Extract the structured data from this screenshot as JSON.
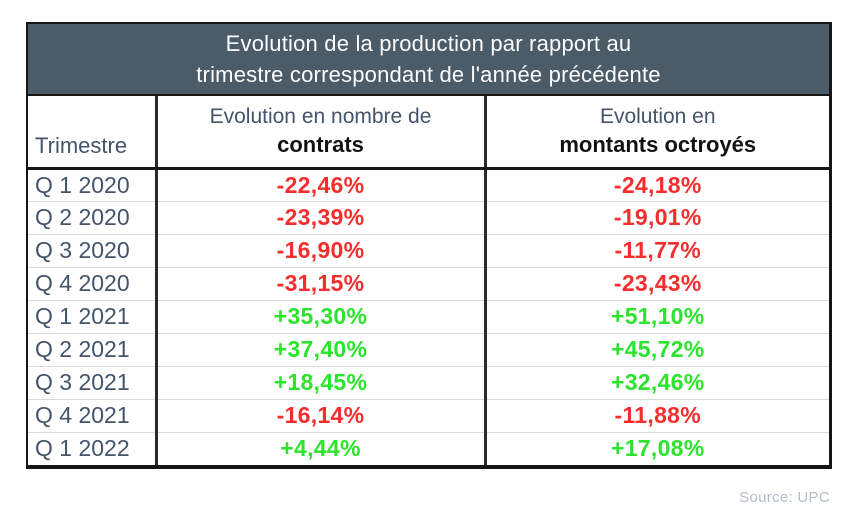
{
  "title": {
    "line1": "Evolution de la production par rapport au",
    "line2": "trimestre correspondant de l'année précédente"
  },
  "columns": {
    "trimestre": "Trimestre",
    "contrats_line1": "Evolution en nombre de",
    "contrats_line2": "contrats",
    "montants_line1": "Evolution en",
    "montants_line2": "montants octroyés"
  },
  "rows": [
    {
      "trimestre": "Q 1 2020",
      "contrats": "-22,46%",
      "montants": "-24,18%"
    },
    {
      "trimestre": "Q 2 2020",
      "contrats": "-23,39%",
      "montants": "-19,01%"
    },
    {
      "trimestre": "Q 3 2020",
      "contrats": "-16,90%",
      "montants": "-11,77%"
    },
    {
      "trimestre": "Q 4 2020",
      "contrats": "-31,15%",
      "montants": "-23,43%"
    },
    {
      "trimestre": "Q 1 2021",
      "contrats": "+35,30%",
      "montants": "+51,10%"
    },
    {
      "trimestre": "Q 2 2021",
      "contrats": "+37,40%",
      "montants": "+45,72%"
    },
    {
      "trimestre": "Q 3 2021",
      "contrats": "+18,45%",
      "montants": "+32,46%"
    },
    {
      "trimestre": "Q 4 2021",
      "contrats": "-16,14%",
      "montants": "-11,88%"
    },
    {
      "trimestre": "Q 1 2022",
      "contrats": "+4,44%",
      "montants": "+17,08%"
    }
  ],
  "source": "Source: UPC",
  "colors": {
    "header_bg": "#4c5b68",
    "label": "#44546a",
    "negative": "#f62d2d",
    "positive": "#2be42b",
    "source": "#b4bcc8"
  },
  "chart_data": {
    "type": "table",
    "title": "Evolution de la production par rapport au trimestre correspondant de l'année précédente",
    "categories": [
      "Q 1 2020",
      "Q 2 2020",
      "Q 3 2020",
      "Q 4 2020",
      "Q 1 2021",
      "Q 2 2021",
      "Q 3 2021",
      "Q 4 2021",
      "Q 1 2022"
    ],
    "series": [
      {
        "name": "Evolution en nombre de contrats",
        "values": [
          -22.46,
          -23.39,
          -16.9,
          -31.15,
          35.3,
          37.4,
          18.45,
          -16.14,
          4.44
        ]
      },
      {
        "name": "Evolution en montants octroyés",
        "values": [
          -24.18,
          -19.01,
          -11.77,
          -23.43,
          51.1,
          45.72,
          32.46,
          -11.88,
          17.08
        ]
      }
    ],
    "unit": "%"
  }
}
